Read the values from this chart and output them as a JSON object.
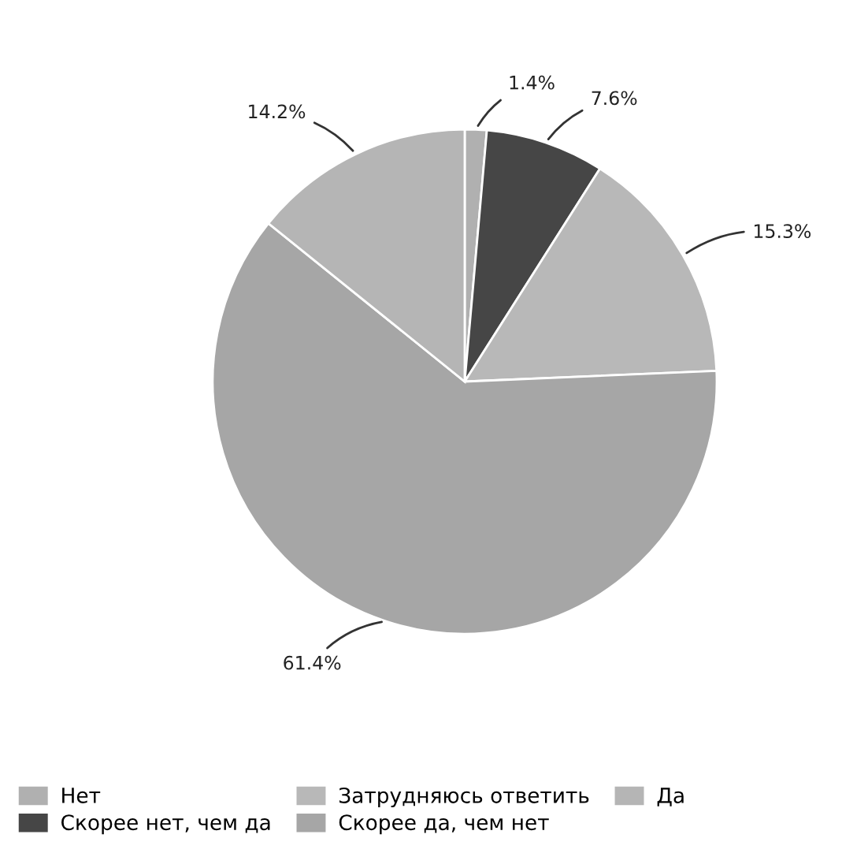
{
  "chart_data": {
    "type": "pie",
    "categories": [
      "Нет",
      "Скорее нет, чем да",
      "Затрудняюсь ответить",
      "Скорее да, чем нет",
      "Да"
    ],
    "values": [
      1.4,
      7.6,
      15.3,
      61.4,
      14.2
    ],
    "value_labels": [
      "1.4%",
      "7.6%",
      "15.3%",
      "61.4%",
      "14.2%"
    ],
    "colors": [
      "#b0b0b0",
      "#464646",
      "#b8b8b8",
      "#a6a6a6",
      "#b5b5b5"
    ],
    "legend": "bottom left"
  }
}
